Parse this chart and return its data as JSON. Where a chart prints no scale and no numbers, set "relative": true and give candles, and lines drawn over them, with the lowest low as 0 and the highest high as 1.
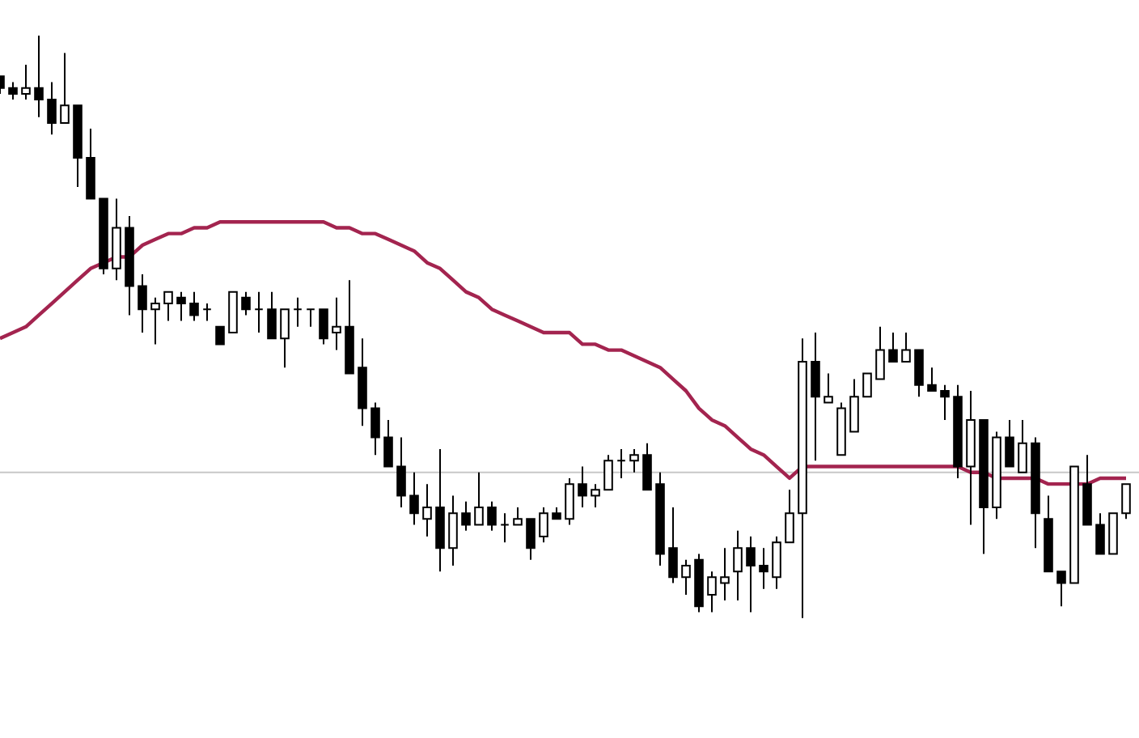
{
  "chart_data": {
    "type": "candlestick",
    "relative": true,
    "categories": [
      null,
      null,
      null,
      null,
      null,
      null,
      null,
      null,
      null,
      null,
      null,
      null,
      null,
      null,
      null,
      null,
      null,
      null,
      null,
      null,
      null,
      null,
      null,
      null,
      null,
      null,
      null,
      null,
      null,
      null,
      null,
      null,
      null,
      null,
      null,
      null,
      null,
      null,
      null,
      null,
      null,
      null,
      null,
      null,
      null,
      null,
      null,
      null,
      null,
      null,
      null,
      null,
      null,
      null,
      null,
      null,
      null,
      null,
      null,
      null,
      null,
      null,
      null,
      null,
      null,
      null,
      null,
      null,
      null,
      null,
      null,
      null,
      null,
      null,
      null,
      null,
      null,
      null,
      null,
      null,
      null,
      null,
      null,
      null,
      null,
      null,
      null,
      null
    ],
    "ohlc": [
      [
        0.93,
        0.93,
        0.9,
        0.91
      ],
      [
        0.91,
        0.92,
        0.89,
        0.9
      ],
      [
        0.9,
        0.95,
        0.89,
        0.91
      ],
      [
        0.91,
        1.0,
        0.86,
        0.89
      ],
      [
        0.89,
        0.92,
        0.83,
        0.85
      ],
      [
        0.85,
        0.97,
        0.85,
        0.88
      ],
      [
        0.88,
        0.88,
        0.74,
        0.79
      ],
      [
        0.79,
        0.84,
        0.72,
        0.72
      ],
      [
        0.72,
        0.72,
        0.59,
        0.6
      ],
      [
        0.6,
        0.72,
        0.58,
        0.67
      ],
      [
        0.67,
        0.69,
        0.52,
        0.57
      ],
      [
        0.57,
        0.59,
        0.49,
        0.53
      ],
      [
        0.53,
        0.55,
        0.47,
        0.54
      ],
      [
        0.54,
        0.56,
        0.51,
        0.56
      ],
      [
        0.55,
        0.56,
        0.51,
        0.54
      ],
      [
        0.54,
        0.56,
        0.51,
        0.52
      ],
      [
        0.53,
        0.54,
        0.51,
        0.53
      ],
      [
        0.5,
        0.5,
        0.47,
        0.47
      ],
      [
        0.49,
        0.56,
        0.49,
        0.56
      ],
      [
        0.55,
        0.56,
        0.52,
        0.53
      ],
      [
        0.53,
        0.56,
        0.49,
        0.53
      ],
      [
        0.53,
        0.56,
        0.48,
        0.48
      ],
      [
        0.48,
        0.53,
        0.43,
        0.53
      ],
      [
        0.53,
        0.55,
        0.5,
        0.53
      ],
      [
        0.53,
        0.53,
        0.5,
        0.53
      ],
      [
        0.53,
        0.53,
        0.47,
        0.48
      ],
      [
        0.49,
        0.55,
        0.46,
        0.5
      ],
      [
        0.5,
        0.58,
        0.42,
        0.42
      ],
      [
        0.43,
        0.48,
        0.33,
        0.36
      ],
      [
        0.36,
        0.37,
        0.28,
        0.31
      ],
      [
        0.31,
        0.34,
        0.26,
        0.26
      ],
      [
        0.26,
        0.31,
        0.19,
        0.21
      ],
      [
        0.21,
        0.25,
        0.16,
        0.18
      ],
      [
        0.17,
        0.23,
        0.14,
        0.19
      ],
      [
        0.19,
        0.29,
        0.08,
        0.12
      ],
      [
        0.12,
        0.21,
        0.09,
        0.18
      ],
      [
        0.18,
        0.2,
        0.15,
        0.16
      ],
      [
        0.16,
        0.25,
        0.16,
        0.19
      ],
      [
        0.19,
        0.2,
        0.15,
        0.16
      ],
      [
        0.16,
        0.18,
        0.13,
        0.16
      ],
      [
        0.16,
        0.19,
        0.16,
        0.17
      ],
      [
        0.17,
        0.17,
        0.1,
        0.12
      ],
      [
        0.14,
        0.19,
        0.13,
        0.18
      ],
      [
        0.18,
        0.19,
        0.17,
        0.17
      ],
      [
        0.17,
        0.24,
        0.16,
        0.23
      ],
      [
        0.23,
        0.26,
        0.19,
        0.21
      ],
      [
        0.21,
        0.23,
        0.19,
        0.22
      ],
      [
        0.22,
        0.28,
        0.22,
        0.27
      ],
      [
        0.27,
        0.29,
        0.24,
        0.27
      ],
      [
        0.27,
        0.29,
        0.25,
        0.28
      ],
      [
        0.28,
        0.3,
        0.22,
        0.22
      ],
      [
        0.23,
        0.25,
        0.09,
        0.11
      ],
      [
        0.12,
        0.19,
        0.06,
        0.07
      ],
      [
        0.07,
        0.1,
        0.04,
        0.09
      ],
      [
        0.1,
        0.11,
        0.01,
        0.02
      ],
      [
        0.04,
        0.08,
        0.01,
        0.07
      ],
      [
        0.06,
        0.12,
        0.03,
        0.07
      ],
      [
        0.08,
        0.15,
        0.03,
        0.12
      ],
      [
        0.12,
        0.14,
        0.01,
        0.09
      ],
      [
        0.09,
        0.12,
        0.05,
        0.08
      ],
      [
        0.07,
        0.14,
        0.05,
        0.13
      ],
      [
        0.13,
        0.22,
        0.13,
        0.18
      ],
      [
        0.18,
        0.48,
        0.0,
        0.44
      ],
      [
        0.44,
        0.49,
        0.27,
        0.38
      ],
      [
        0.37,
        0.42,
        0.37,
        0.38
      ],
      [
        0.28,
        0.37,
        0.28,
        0.36
      ],
      [
        0.32,
        0.41,
        0.32,
        0.38
      ],
      [
        0.38,
        0.42,
        0.38,
        0.42
      ],
      [
        0.41,
        0.5,
        0.41,
        0.46
      ],
      [
        0.46,
        0.49,
        0.44,
        0.44
      ],
      [
        0.44,
        0.49,
        0.44,
        0.46
      ],
      [
        0.46,
        0.46,
        0.38,
        0.4
      ],
      [
        0.4,
        0.43,
        0.39,
        0.39
      ],
      [
        0.39,
        0.4,
        0.34,
        0.38
      ],
      [
        0.38,
        0.4,
        0.24,
        0.26
      ],
      [
        0.26,
        0.39,
        0.16,
        0.34
      ],
      [
        0.34,
        0.34,
        0.11,
        0.19
      ],
      [
        0.19,
        0.32,
        0.17,
        0.31
      ],
      [
        0.31,
        0.34,
        0.26,
        0.26
      ],
      [
        0.25,
        0.34,
        0.25,
        0.3
      ],
      [
        0.3,
        0.31,
        0.12,
        0.18
      ],
      [
        0.17,
        0.21,
        0.08,
        0.08
      ],
      [
        0.08,
        0.08,
        0.02,
        0.06
      ],
      [
        0.06,
        0.26,
        0.06,
        0.26
      ],
      [
        0.23,
        0.28,
        0.16,
        0.16
      ],
      [
        0.16,
        0.18,
        0.11,
        0.11
      ],
      [
        0.11,
        0.18,
        0.11,
        0.18
      ],
      [
        0.18,
        0.23,
        0.17,
        0.23
      ]
    ],
    "series": [
      {
        "type": "line",
        "color": "#a3244f",
        "values": [
          0.48,
          0.49,
          0.5,
          0.52,
          0.54,
          0.56,
          0.58,
          0.6,
          0.61,
          0.62,
          0.62,
          0.64,
          0.65,
          0.66,
          0.66,
          0.67,
          0.67,
          0.68,
          0.68,
          0.68,
          0.68,
          0.68,
          0.68,
          0.68,
          0.68,
          0.68,
          0.67,
          0.67,
          0.66,
          0.66,
          0.65,
          0.64,
          0.63,
          0.61,
          0.6,
          0.58,
          0.56,
          0.55,
          0.53,
          0.52,
          0.51,
          0.5,
          0.49,
          0.49,
          0.49,
          0.47,
          0.47,
          0.46,
          0.46,
          0.45,
          0.44,
          0.43,
          0.41,
          0.39,
          0.36,
          0.34,
          0.33,
          0.31,
          0.29,
          0.28,
          0.26,
          0.24,
          0.26,
          0.26,
          0.26,
          0.26,
          0.26,
          0.26,
          0.26,
          0.26,
          0.26,
          0.26,
          0.26,
          0.26,
          0.26,
          0.25,
          0.25,
          0.24,
          0.24,
          0.24,
          0.24,
          0.23,
          0.23,
          0.23,
          0.23,
          0.24,
          0.24,
          0.24
        ]
      }
    ],
    "ref_lines": [
      {
        "axis": "y",
        "value": 0.25,
        "color": "#c8c8c8"
      }
    ]
  }
}
